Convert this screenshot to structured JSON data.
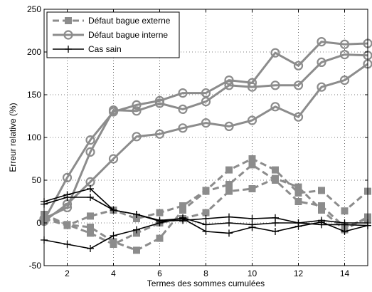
{
  "chart_data": {
    "type": "line",
    "title": "",
    "xlabel": "Termes des sommes cumulées",
    "ylabel": "Erreur relative (%)",
    "xlim": [
      1,
      15
    ],
    "ylim": [
      -50,
      250
    ],
    "xticks": [
      2,
      4,
      6,
      8,
      10,
      12,
      14
    ],
    "yticks": [
      -50,
      0,
      50,
      100,
      150,
      200,
      250
    ],
    "x": [
      1,
      2,
      3,
      4,
      5,
      6,
      7,
      8,
      9,
      10,
      11,
      12,
      13,
      14,
      15
    ],
    "grid": true,
    "legend_position": "top-left",
    "groups": [
      {
        "legend": "Défaut bague externe",
        "color": "#8c8c8c",
        "dash": "dashed",
        "marker": "square",
        "lines": [
          [
            5,
            -3,
            8,
            15,
            5,
            12,
            20,
            38,
            62,
            75,
            62,
            35,
            38,
            14,
            37
          ],
          [
            8,
            -2,
            -5,
            -22,
            -32,
            -18,
            15,
            37,
            45,
            68,
            50,
            25,
            20,
            -5,
            5
          ],
          [
            10,
            -2,
            -12,
            -25,
            -12,
            0,
            5,
            12,
            37,
            40,
            52,
            42,
            15,
            -8,
            7
          ]
        ]
      },
      {
        "legend": "Défaut bague interne",
        "color": "#8c8c8c",
        "dash": "solid",
        "marker": "circle",
        "lines": [
          [
            3,
            53,
            97,
            130,
            138,
            143,
            152,
            152,
            167,
            164,
            199,
            184,
            212,
            209,
            210
          ],
          [
            5,
            18,
            83,
            132,
            131,
            140,
            133,
            142,
            161,
            159,
            161,
            161,
            188,
            197,
            196
          ],
          [
            2,
            22,
            48,
            75,
            101,
            104,
            111,
            117,
            113,
            120,
            136,
            124,
            159,
            167,
            186
          ]
        ]
      },
      {
        "legend": "Cas sain",
        "color": "#000000",
        "dash": "solid",
        "marker": "plus",
        "lines": [
          [
            25,
            33,
            40,
            15,
            10,
            3,
            5,
            -10,
            -12,
            -5,
            -10,
            -4,
            1,
            -10,
            -3
          ],
          [
            22,
            30,
            30,
            15,
            10,
            2,
            3,
            5,
            7,
            5,
            6,
            0,
            3,
            0,
            0
          ],
          [
            -20,
            -25,
            -30,
            -15,
            -8,
            0,
            6,
            -2,
            0,
            -2,
            0,
            0,
            -2,
            -2,
            -3
          ]
        ]
      }
    ]
  }
}
